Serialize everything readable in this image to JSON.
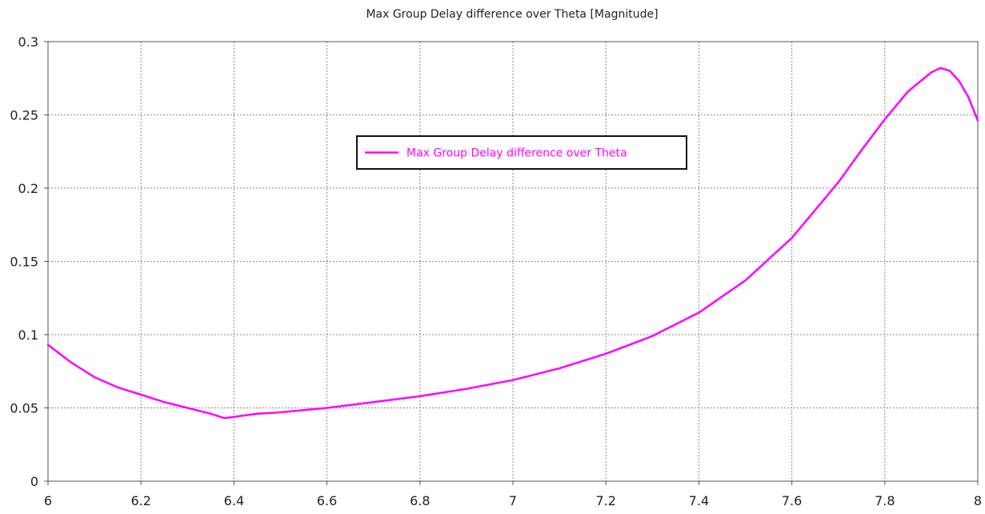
{
  "chart_data": {
    "type": "line",
    "title": "Max Group Delay difference over Theta [Magnitude]",
    "xlabel": "",
    "ylabel": "",
    "xlim": [
      6,
      8
    ],
    "ylim": [
      0,
      0.3
    ],
    "x_ticks": [
      6,
      6.2,
      6.4,
      6.6,
      6.8,
      7,
      7.2,
      7.4,
      7.6,
      7.8,
      8
    ],
    "x_tick_labels": [
      "6",
      "6.2",
      "6.4",
      "6.6",
      "6.8",
      "7",
      "7.2",
      "7.4",
      "7.6",
      "7.8",
      "8"
    ],
    "y_ticks": [
      0,
      0.05,
      0.1,
      0.15,
      0.2,
      0.25,
      0.3
    ],
    "y_tick_labels": [
      "0",
      "0.05",
      "0.1",
      "0.15",
      "0.2",
      "0.25",
      "0.3"
    ],
    "grid": true,
    "legend": {
      "placement": "top-center",
      "entries": [
        "Max Group Delay difference over Theta"
      ]
    },
    "series": [
      {
        "name": "Max Group Delay difference over Theta",
        "color": "#ff00ff",
        "x": [
          6.0,
          6.05,
          6.1,
          6.15,
          6.2,
          6.25,
          6.3,
          6.35,
          6.38,
          6.45,
          6.5,
          6.6,
          6.7,
          6.8,
          6.9,
          7.0,
          7.1,
          7.2,
          7.3,
          7.4,
          7.5,
          7.6,
          7.7,
          7.75,
          7.8,
          7.85,
          7.9,
          7.92,
          7.94,
          7.96,
          7.98,
          8.0
        ],
        "y": [
          0.093,
          0.081,
          0.071,
          0.064,
          0.059,
          0.054,
          0.05,
          0.046,
          0.043,
          0.046,
          0.047,
          0.05,
          0.054,
          0.058,
          0.063,
          0.069,
          0.077,
          0.087,
          0.099,
          0.115,
          0.137,
          0.166,
          0.204,
          0.226,
          0.247,
          0.266,
          0.279,
          0.282,
          0.28,
          0.273,
          0.262,
          0.246
        ]
      }
    ]
  }
}
